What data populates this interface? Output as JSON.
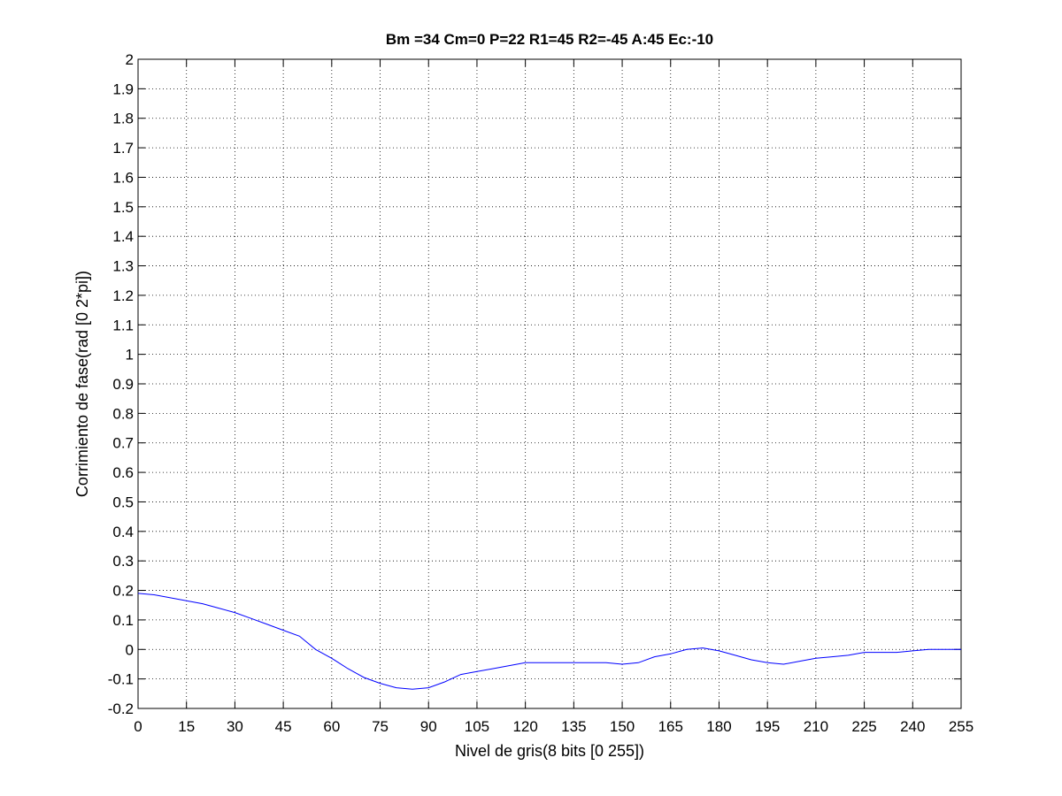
{
  "chart_data": {
    "type": "line",
    "title": "Bm =34  Cm=0  P=22  R1=45  R2=-45  A:45  Ec:-10",
    "xlabel": "Nivel de gris(8 bits [0 255])",
    "ylabel": "Corrimiento de fase(rad [0 2*pi])",
    "xlim": [
      0,
      255
    ],
    "ylim": [
      -0.2,
      2
    ],
    "xticks": [
      0,
      15,
      30,
      45,
      60,
      75,
      90,
      105,
      120,
      135,
      150,
      165,
      180,
      195,
      210,
      225,
      240,
      255
    ],
    "yticks": [
      -0.2,
      -0.1,
      0,
      0.1,
      0.2,
      0.3,
      0.4,
      0.5,
      0.6,
      0.7,
      0.8,
      0.9,
      1,
      1.1,
      1.2,
      1.3,
      1.4,
      1.5,
      1.6,
      1.7,
      1.8,
      1.9,
      2
    ],
    "ytick_labels": [
      "-0.2",
      "-0.1",
      "0",
      "0.1",
      "0.2",
      "0.3",
      "0.4",
      "0.5",
      "0.6",
      "0.7",
      "0.8",
      "0.9",
      "1",
      "1.1",
      "1.2",
      "1.3",
      "1.4",
      "1.5",
      "1.6",
      "1.7",
      "1.8",
      "1.9",
      "2"
    ],
    "grid": true,
    "legend": "none",
    "series": [
      {
        "color": "#0000ff",
        "x": [
          0,
          5,
          10,
          15,
          20,
          25,
          30,
          35,
          40,
          45,
          50,
          55,
          60,
          65,
          70,
          75,
          80,
          85,
          90,
          95,
          100,
          105,
          110,
          115,
          120,
          125,
          130,
          135,
          140,
          145,
          150,
          155,
          160,
          165,
          170,
          175,
          180,
          185,
          190,
          195,
          200,
          205,
          210,
          215,
          220,
          225,
          230,
          235,
          240,
          245,
          250,
          255
        ],
        "y": [
          0.19,
          0.185,
          0.175,
          0.165,
          0.155,
          0.14,
          0.125,
          0.105,
          0.085,
          0.065,
          0.045,
          0.0,
          -0.03,
          -0.065,
          -0.095,
          -0.115,
          -0.13,
          -0.135,
          -0.13,
          -0.11,
          -0.085,
          -0.075,
          -0.065,
          -0.055,
          -0.045,
          -0.045,
          -0.045,
          -0.045,
          -0.045,
          -0.045,
          -0.05,
          -0.045,
          -0.025,
          -0.015,
          0.0,
          0.005,
          -0.005,
          -0.02,
          -0.035,
          -0.045,
          -0.05,
          -0.04,
          -0.03,
          -0.025,
          -0.02,
          -0.01,
          -0.01,
          -0.01,
          -0.005,
          0.0,
          0.0,
          0.0
        ]
      }
    ]
  }
}
